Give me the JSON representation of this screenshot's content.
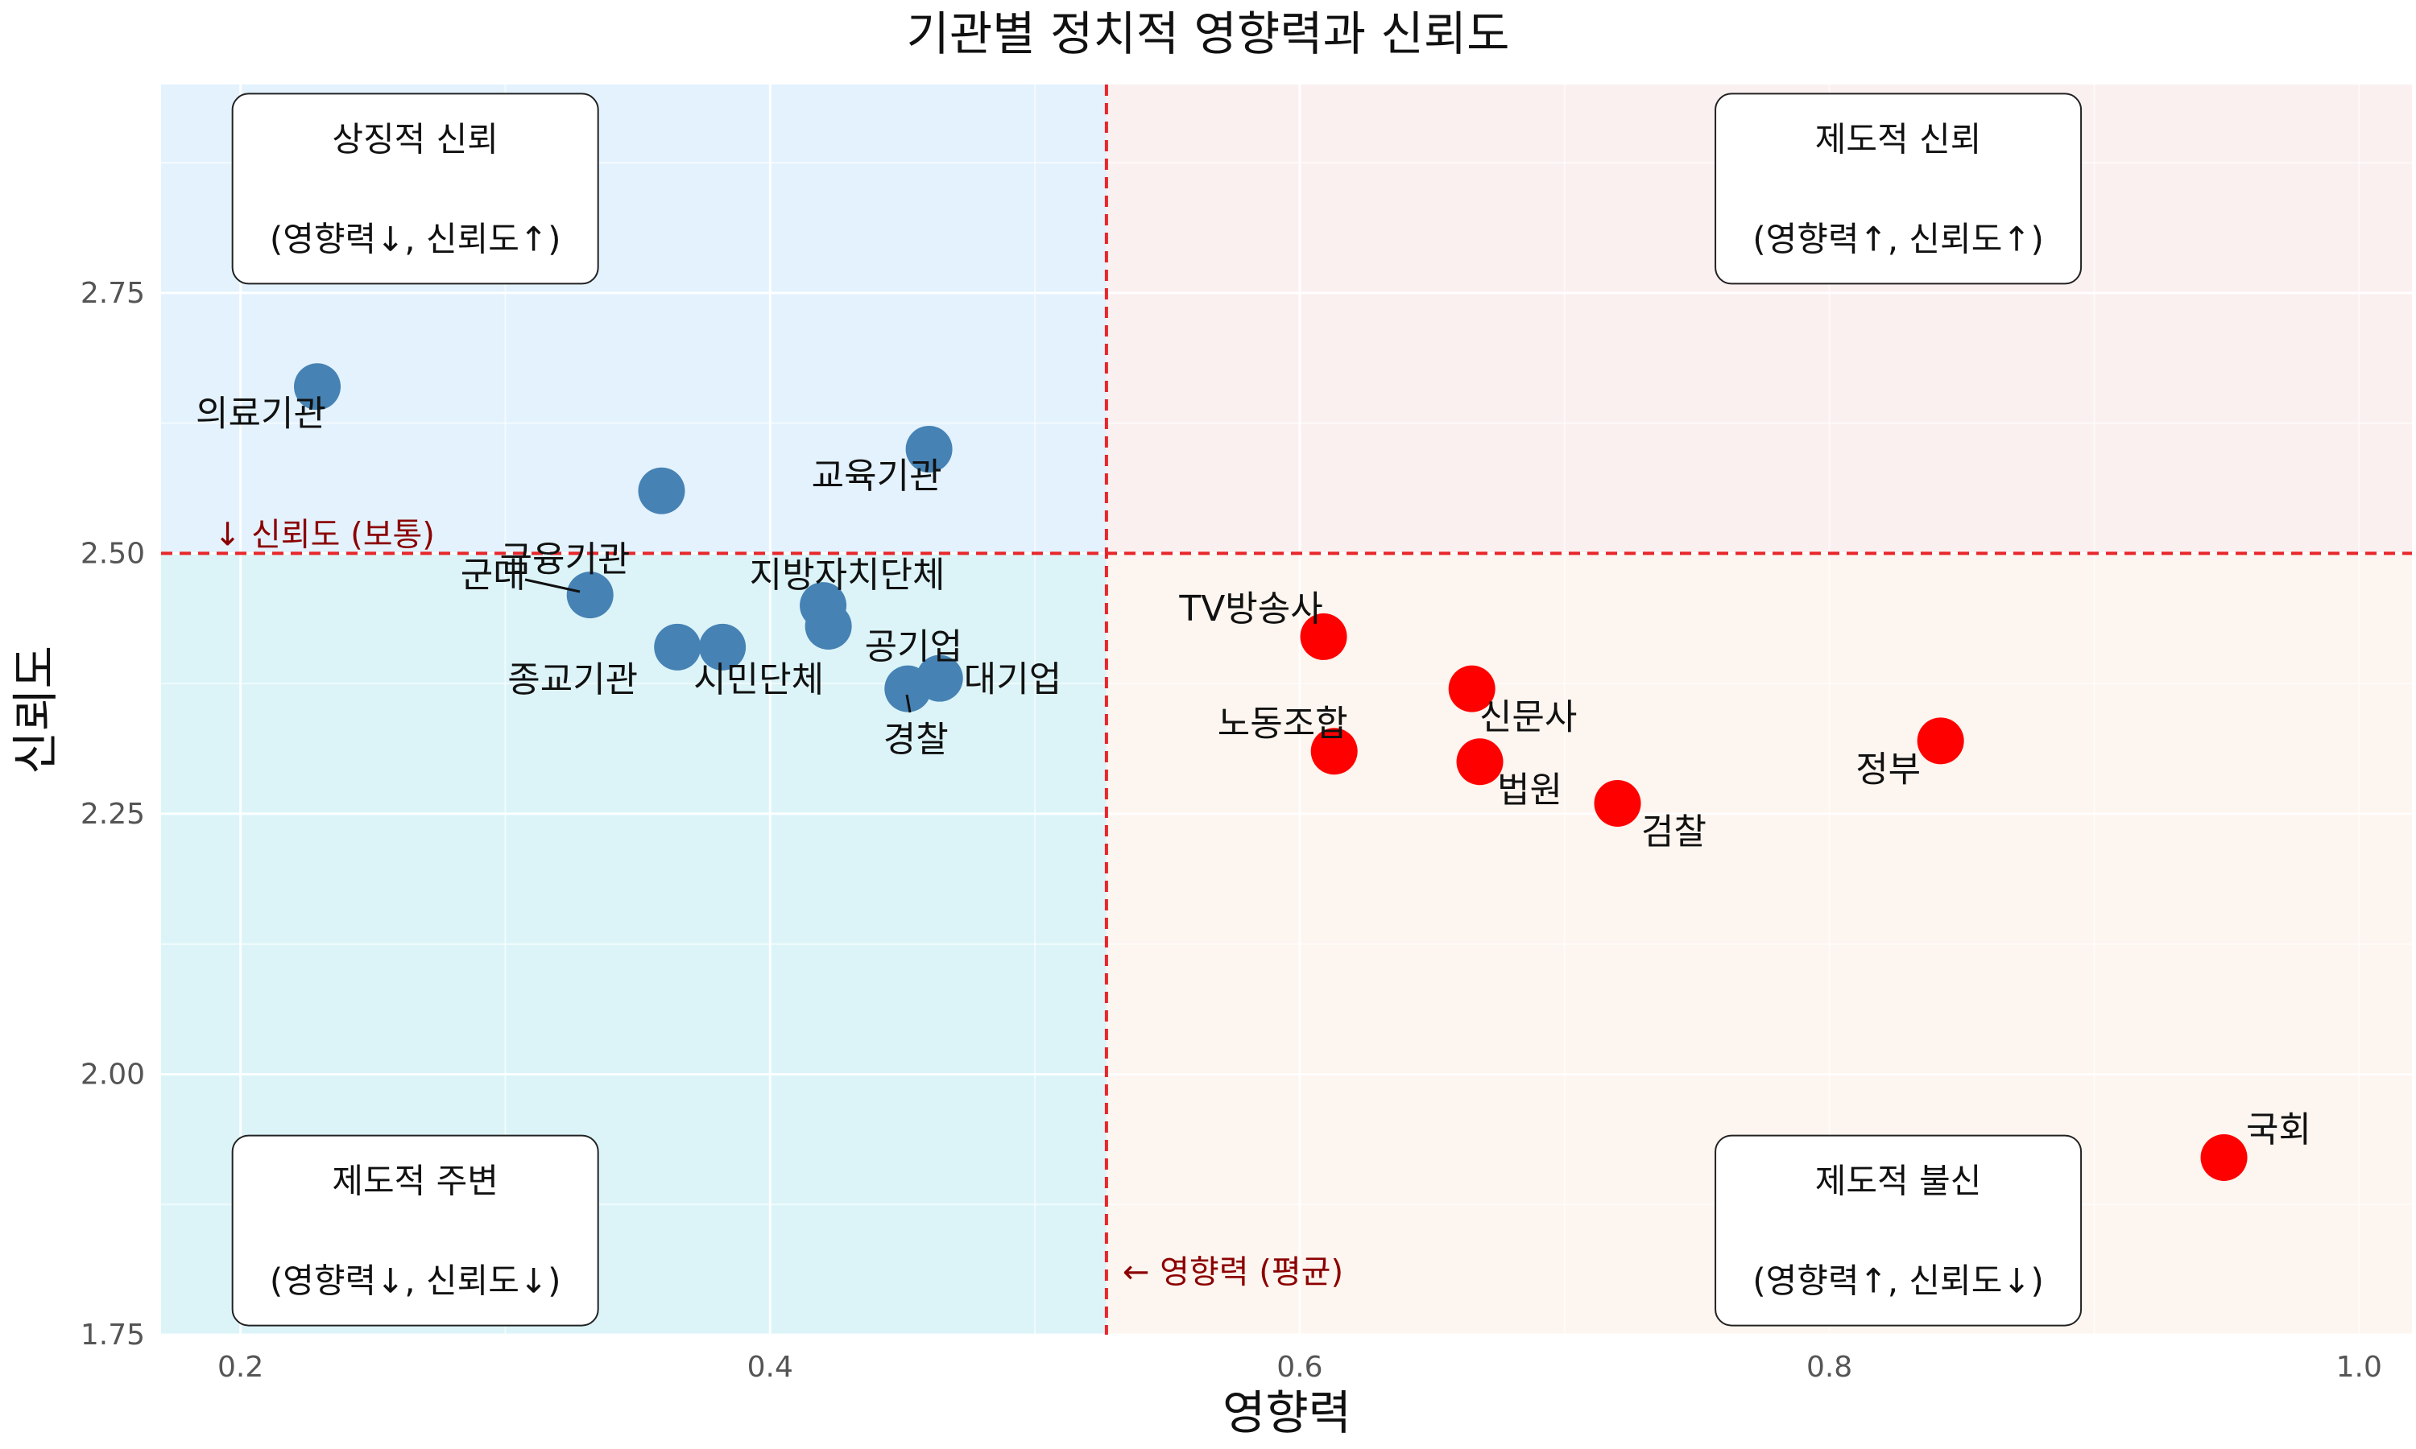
{
  "chart_data": {
    "type": "scatter",
    "title": "기관별 정치적 영향력과 신뢰도",
    "xlabel": "영향력",
    "ylabel": "신뢰도",
    "xlim": [
      0.17,
      1.02
    ],
    "ylim": [
      1.75,
      2.95
    ],
    "xticks": [
      "0.2",
      "0.4",
      "0.6",
      "0.8",
      "1.0"
    ],
    "yticks": [
      "1.75",
      "2.00",
      "2.25",
      "2.50",
      "2.75"
    ],
    "grid": true,
    "x_reference": {
      "value": 0.527,
      "label": "← 영향력 (평균)"
    },
    "y_reference": {
      "value": 2.5,
      "label": "↓ 신뢰도 (보통)"
    },
    "quadrants": [
      {
        "title": "상징적 신뢰",
        "subtitle": "(영향력↓, 신뢰도↑)"
      },
      {
        "title": "제도적 신뢰",
        "subtitle": "(영향력↑, 신뢰도↑)"
      },
      {
        "title": "제도적 주변",
        "subtitle": "(영향력↓, 신뢰도↓)"
      },
      {
        "title": "제도적 불신",
        "subtitle": "(영향력↑, 신뢰도↓)"
      }
    ],
    "points": [
      {
        "label": "의료기관",
        "x": 0.229,
        "y": 2.66
      },
      {
        "label": "교육기관",
        "x": 0.46,
        "y": 2.6
      },
      {
        "label": "금융기관",
        "x": 0.359,
        "y": 2.56
      },
      {
        "label": "군대",
        "x": 0.332,
        "y": 2.46
      },
      {
        "label": "종교기관",
        "x": 0.365,
        "y": 2.41
      },
      {
        "label": "시민단체",
        "x": 0.382,
        "y": 2.41
      },
      {
        "label": "지방자치단체",
        "x": 0.42,
        "y": 2.45
      },
      {
        "label": "공기업",
        "x": 0.422,
        "y": 2.43
      },
      {
        "label": "경찰",
        "x": 0.452,
        "y": 2.37
      },
      {
        "label": "대기업",
        "x": 0.464,
        "y": 2.38
      },
      {
        "label": "TV방송사",
        "x": 0.609,
        "y": 2.42
      },
      {
        "label": "노동조합",
        "x": 0.613,
        "y": 2.31
      },
      {
        "label": "신문사",
        "x": 0.665,
        "y": 2.37
      },
      {
        "label": "법원",
        "x": 0.668,
        "y": 2.3
      },
      {
        "label": "검찰",
        "x": 0.72,
        "y": 2.26
      },
      {
        "label": "정부",
        "x": 0.842,
        "y": 2.32
      },
      {
        "label": "국회",
        "x": 0.949,
        "y": 1.92
      }
    ],
    "colors": {
      "low_influence": "#4682b4",
      "high_influence": "#ff0000",
      "reference_line": "#e8262a",
      "reference_text": "#8b0000",
      "bg_top_left": "#e3f2fd",
      "bg_bottom_left": "#dcf4f8",
      "bg_top_right": "#fbf0f0",
      "bg_bottom_right": "#fdf5ef"
    }
  }
}
